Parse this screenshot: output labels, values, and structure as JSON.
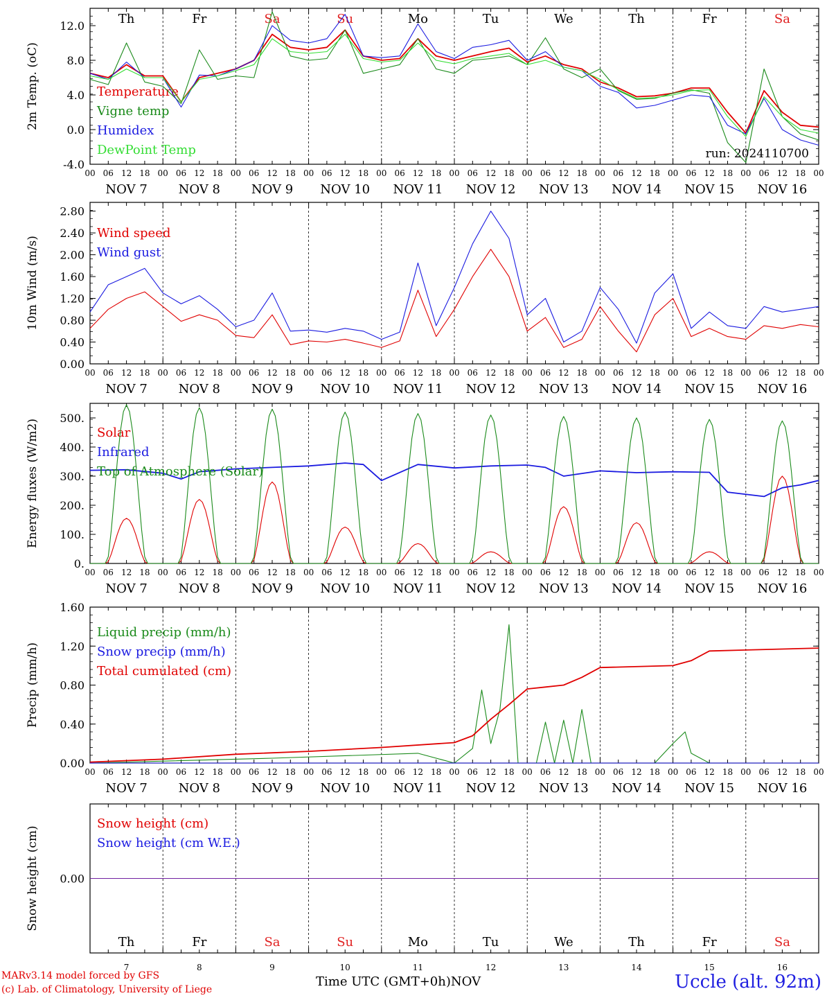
{
  "days": [
    {
      "abbr": "Th",
      "date": "NOV  7",
      "num": "7",
      "weekend": false
    },
    {
      "abbr": "Fr",
      "date": "NOV  8",
      "num": "8",
      "weekend": false
    },
    {
      "abbr": "Sa",
      "date": "NOV  9",
      "num": "9",
      "weekend": true
    },
    {
      "abbr": "Su",
      "date": "NOV 10",
      "num": "10",
      "weekend": true
    },
    {
      "abbr": "Mo",
      "date": "NOV 11",
      "num": "11",
      "weekend": false
    },
    {
      "abbr": "Tu",
      "date": "NOV 12",
      "num": "12",
      "weekend": false
    },
    {
      "abbr": "We",
      "date": "NOV 13",
      "num": "13",
      "weekend": false
    },
    {
      "abbr": "Th",
      "date": "NOV 14",
      "num": "14",
      "weekend": false
    },
    {
      "abbr": "Fr",
      "date": "NOV 15",
      "num": "15",
      "weekend": false
    },
    {
      "abbr": "Sa",
      "date": "NOV 16",
      "num": "16",
      "weekend": true
    }
  ],
  "hour_ticks": [
    "00",
    "06",
    "12",
    "18"
  ],
  "colors": {
    "red": "#e00000",
    "green": "#1a8a1a",
    "blue": "#1a1ae0",
    "lightgreen": "#33dd33",
    "purple": "#7020a0",
    "weekend": "#e02020"
  },
  "footer": {
    "credit_line1": "MARv3.14 model forced by GFS",
    "credit_line2": "(c) Lab. of Climatology, University of Liege",
    "time_label": "Time UTC (GMT+0h)",
    "month_label": "NOV",
    "location": "Uccle (alt. 92m)"
  },
  "chart_data": [
    {
      "type": "line",
      "ylabel": "2m Temp. (oC)",
      "ylim": [
        -4,
        14
      ],
      "yticks": [
        "12.0",
        "8.0",
        "4.0",
        "0.0",
        "-4.0"
      ],
      "annotation": "run: 2024110700",
      "x_unit": "hours since 2024-11-07 00 UTC",
      "series": [
        {
          "name": "Temperature",
          "color": "red",
          "x": [
            0,
            6,
            12,
            18,
            24,
            30,
            36,
            42,
            48,
            54,
            60,
            66,
            72,
            78,
            84,
            90,
            96,
            102,
            108,
            114,
            120,
            126,
            132,
            138,
            144,
            150,
            156,
            162,
            168,
            174,
            180,
            186,
            192,
            198,
            204,
            210,
            216,
            222,
            228,
            234,
            240
          ],
          "y": [
            6.5,
            6.0,
            7.5,
            6.2,
            6.2,
            3.2,
            6.0,
            6.5,
            7.0,
            8.0,
            11.0,
            9.5,
            9.2,
            9.5,
            11.5,
            8.5,
            8.0,
            8.2,
            10.5,
            8.5,
            8.0,
            8.5,
            9.0,
            9.4,
            7.8,
            8.5,
            7.5,
            7.0,
            5.5,
            4.8,
            3.8,
            3.9,
            4.2,
            4.8,
            4.8,
            2.0,
            -0.4,
            4.5,
            2.0,
            0.5,
            0.3
          ]
        },
        {
          "name": "Vigne temp",
          "color": "green",
          "x": [
            0,
            6,
            12,
            18,
            24,
            30,
            36,
            42,
            48,
            54,
            60,
            66,
            72,
            78,
            84,
            90,
            96,
            102,
            108,
            114,
            120,
            126,
            132,
            138,
            144,
            150,
            156,
            162,
            168,
            174,
            180,
            186,
            192,
            198,
            204,
            210,
            216,
            222,
            228,
            234,
            240
          ],
          "y": [
            5.8,
            5.2,
            10.0,
            5.5,
            5.0,
            3.0,
            9.2,
            5.8,
            6.2,
            6.0,
            13.6,
            8.5,
            8.0,
            8.2,
            11.5,
            6.5,
            7.0,
            7.5,
            10.5,
            7.0,
            6.5,
            8.0,
            8.2,
            8.5,
            7.5,
            10.6,
            7.0,
            6.0,
            7.0,
            4.5,
            3.5,
            3.6,
            4.2,
            4.6,
            4.2,
            -1.5,
            -3.8,
            7.0,
            1.5,
            -0.5,
            -1.2
          ]
        },
        {
          "name": "Humidex",
          "color": "blue",
          "x": [
            0,
            6,
            12,
            18,
            24,
            30,
            36,
            42,
            48,
            54,
            60,
            66,
            72,
            78,
            84,
            90,
            96,
            102,
            108,
            114,
            120,
            126,
            132,
            138,
            144,
            150,
            156,
            162,
            168,
            174,
            180,
            186,
            192,
            198,
            204,
            210,
            216,
            222,
            228,
            234,
            240
          ],
          "y": [
            6.5,
            5.8,
            7.8,
            6.0,
            6.0,
            2.6,
            6.3,
            6.2,
            7.0,
            8.0,
            12.0,
            10.3,
            10.0,
            10.5,
            13.3,
            8.5,
            8.3,
            8.5,
            12.2,
            9.0,
            8.2,
            9.5,
            9.8,
            10.3,
            8.0,
            9.0,
            7.2,
            6.8,
            5.0,
            4.3,
            2.5,
            2.8,
            3.4,
            4.0,
            3.8,
            0.5,
            -0.5,
            3.6,
            0.0,
            -1.2,
            -1.8
          ]
        },
        {
          "name": "DewPoint Temp",
          "color": "lightgreen",
          "x": [
            0,
            6,
            12,
            18,
            24,
            30,
            36,
            42,
            48,
            54,
            60,
            66,
            72,
            78,
            84,
            90,
            96,
            102,
            108,
            114,
            120,
            126,
            132,
            138,
            144,
            150,
            156,
            162,
            168,
            174,
            180,
            186,
            192,
            198,
            204,
            210,
            216,
            222,
            228,
            234,
            240
          ],
          "y": [
            6.2,
            5.8,
            7.0,
            6.0,
            6.0,
            3.2,
            5.8,
            6.2,
            6.8,
            7.5,
            10.5,
            9.0,
            8.8,
            9.0,
            11.0,
            8.2,
            7.8,
            8.0,
            10.0,
            8.0,
            7.6,
            8.2,
            8.5,
            8.8,
            7.5,
            8.0,
            7.2,
            6.8,
            5.8,
            4.6,
            3.6,
            3.7,
            4.0,
            4.5,
            4.6,
            1.5,
            -0.8,
            3.8,
            1.5,
            0.0,
            -0.4
          ]
        }
      ]
    },
    {
      "type": "line",
      "ylabel": "10m Wind (m/s)",
      "ylim": [
        0,
        3.0
      ],
      "yticks": [
        "2.80",
        "2.40",
        "2.00",
        "1.60",
        "1.20",
        "0.80",
        "0.40",
        "0.00"
      ],
      "series": [
        {
          "name": "Wind speed",
          "color": "red",
          "x": [
            0,
            6,
            12,
            18,
            24,
            30,
            36,
            42,
            48,
            54,
            60,
            66,
            72,
            78,
            84,
            90,
            96,
            102,
            108,
            114,
            120,
            126,
            132,
            138,
            144,
            150,
            156,
            162,
            168,
            174,
            180,
            186,
            192,
            198,
            204,
            210,
            216,
            222,
            228,
            234,
            240
          ],
          "y": [
            0.65,
            1.0,
            1.2,
            1.32,
            1.05,
            0.78,
            0.9,
            0.8,
            0.52,
            0.48,
            0.9,
            0.35,
            0.42,
            0.4,
            0.45,
            0.38,
            0.3,
            0.42,
            1.35,
            0.5,
            1.0,
            1.6,
            2.1,
            1.6,
            0.6,
            0.85,
            0.3,
            0.45,
            1.05,
            0.6,
            0.22,
            0.9,
            1.2,
            0.5,
            0.65,
            0.5,
            0.45,
            0.7,
            0.65,
            0.72,
            0.68
          ]
        },
        {
          "name": "Wind gust",
          "color": "blue",
          "x": [
            0,
            6,
            12,
            18,
            24,
            30,
            36,
            42,
            48,
            54,
            60,
            66,
            72,
            78,
            84,
            90,
            96,
            102,
            108,
            114,
            120,
            126,
            132,
            138,
            144,
            150,
            156,
            162,
            168,
            174,
            180,
            186,
            192,
            198,
            204,
            210,
            216,
            222,
            228,
            234,
            240
          ],
          "y": [
            0.95,
            1.45,
            1.6,
            1.75,
            1.3,
            1.1,
            1.25,
            1.0,
            0.68,
            0.8,
            1.3,
            0.6,
            0.62,
            0.58,
            0.65,
            0.6,
            0.45,
            0.58,
            1.85,
            0.7,
            1.4,
            2.2,
            2.8,
            2.3,
            0.9,
            1.2,
            0.4,
            0.6,
            1.4,
            1.0,
            0.38,
            1.3,
            1.65,
            0.65,
            0.95,
            0.7,
            0.65,
            1.05,
            0.95,
            1.0,
            1.05
          ]
        }
      ]
    },
    {
      "type": "line",
      "ylabel": "Energy fluxes (W/m2)",
      "ylim": [
        0,
        550
      ],
      "yticks": [
        "500.",
        "400.",
        "300.",
        "200.",
        "100.",
        "0."
      ],
      "series": [
        {
          "name": "Solar",
          "color": "red",
          "peaks": [
            [
              12,
              155
            ],
            [
              36,
              220
            ],
            [
              60,
              280
            ],
            [
              84,
              125
            ],
            [
              108,
              68
            ],
            [
              132,
              40
            ],
            [
              156,
              195
            ],
            [
              180,
              140
            ],
            [
              204,
              40
            ],
            [
              228,
              300
            ]
          ]
        },
        {
          "name": "Infrared",
          "color": "blue",
          "x": [
            0,
            12,
            24,
            30,
            36,
            48,
            60,
            72,
            84,
            90,
            96,
            108,
            120,
            132,
            144,
            150,
            156,
            168,
            180,
            192,
            204,
            210,
            222,
            228,
            234,
            240
          ],
          "y": [
            320,
            322,
            310,
            290,
            315,
            325,
            330,
            335,
            345,
            340,
            285,
            340,
            328,
            335,
            338,
            330,
            300,
            318,
            312,
            315,
            313,
            245,
            230,
            260,
            270,
            285
          ]
        },
        {
          "name": "Top of Atmosphere (Solar)",
          "color": "green",
          "peaks": [
            [
              12,
              545
            ],
            [
              36,
              535
            ],
            [
              60,
              530
            ],
            [
              84,
              520
            ],
            [
              108,
              515
            ],
            [
              132,
              510
            ],
            [
              156,
              505
            ],
            [
              180,
              500
            ],
            [
              204,
              495
            ],
            [
              228,
              490
            ]
          ]
        }
      ]
    },
    {
      "type": "line",
      "ylabel": "Precip (mm/h)",
      "ylim": [
        0,
        1.6
      ],
      "yticks": [
        "1.60",
        "1.20",
        "0.80",
        "0.40",
        "0.00"
      ],
      "series": [
        {
          "name": "Liquid precip (mm/h)",
          "color": "green",
          "x": [
            0,
            60,
            108,
            120,
            126,
            129,
            132,
            135,
            138,
            141,
            144,
            147,
            150,
            153,
            156,
            159,
            162,
            165,
            168,
            174,
            186,
            192,
            196,
            198,
            204,
            240
          ],
          "y": [
            0.0,
            0.05,
            0.1,
            0.0,
            0.15,
            0.75,
            0.2,
            0.55,
            1.42,
            0.0,
            0.0,
            0.0,
            0.42,
            0.0,
            0.44,
            0.0,
            0.55,
            0.0,
            0.0,
            0.0,
            0.0,
            0.2,
            0.32,
            0.1,
            0.0,
            0.0
          ]
        },
        {
          "name": "Snow precip (mm/h)",
          "color": "blue",
          "x": [
            0,
            240
          ],
          "y": [
            0.0,
            0.0
          ]
        },
        {
          "name": "Total cumulated (cm)",
          "color": "red",
          "x": [
            0,
            24,
            48,
            72,
            96,
            120,
            126,
            132,
            138,
            144,
            150,
            156,
            162,
            168,
            192,
            198,
            204,
            216,
            240
          ],
          "y": [
            0.01,
            0.04,
            0.09,
            0.12,
            0.16,
            0.21,
            0.28,
            0.45,
            0.6,
            0.76,
            0.78,
            0.8,
            0.88,
            0.98,
            1.0,
            1.05,
            1.15,
            1.16,
            1.18
          ]
        }
      ]
    },
    {
      "type": "line",
      "ylabel": "Snow height (cm)",
      "yticks": [
        "0.00"
      ],
      "series": [
        {
          "name": "Snow height (cm)",
          "color": "red",
          "x": [
            0,
            240
          ],
          "y": [
            0,
            0
          ]
        },
        {
          "name": "Snow height (cm W.E.)",
          "color": "blue",
          "x": [
            0,
            240
          ],
          "y": [
            0,
            0
          ]
        }
      ]
    }
  ]
}
